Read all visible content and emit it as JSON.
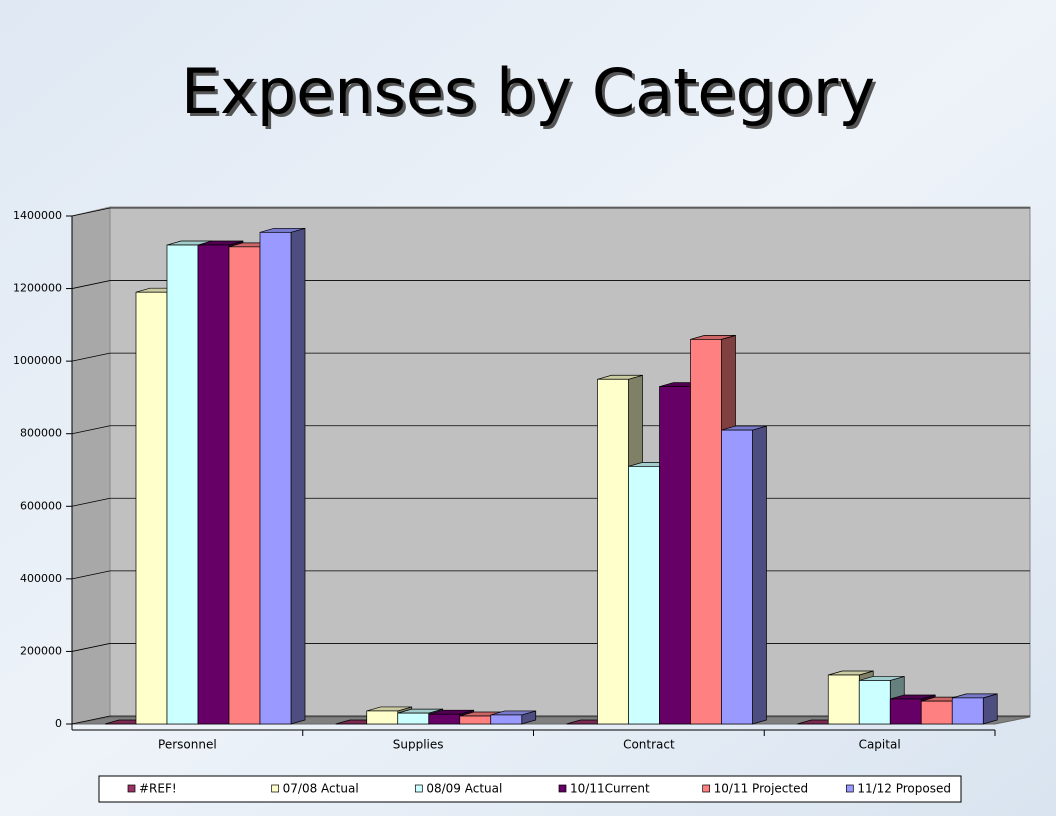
{
  "chart_data": {
    "type": "bar3d",
    "title": "Expenses by Category",
    "categories": [
      "Personnel",
      "Supplies",
      "Contract",
      "Capital"
    ],
    "series": [
      {
        "name": "#REF!",
        "color": "#993366",
        "values": [
          0,
          0,
          0,
          0
        ]
      },
      {
        "name": "07/08 Actual",
        "color": "#FFFFCC",
        "values": [
          1190000,
          36000,
          950000,
          135000
        ]
      },
      {
        "name": "08/09 Actual",
        "color": "#CCFFFF",
        "values": [
          1320000,
          30000,
          710000,
          120000
        ]
      },
      {
        "name": "10/11Current",
        "color": "#660066",
        "values": [
          1320000,
          27000,
          930000,
          69000
        ]
      },
      {
        "name": "10/11 Projected",
        "color": "#FF8080",
        "values": [
          1315000,
          22000,
          1060000,
          63000
        ]
      },
      {
        "name": "11/12 Proposed",
        "color": "#9999FF",
        "values": [
          1355000,
          25000,
          810000,
          72000
        ]
      }
    ],
    "ylim": [
      0,
      1400000
    ],
    "yticks": [
      0,
      200000,
      400000,
      600000,
      800000,
      1000000,
      1200000,
      1400000
    ],
    "grid": true,
    "legend": "bottom"
  }
}
